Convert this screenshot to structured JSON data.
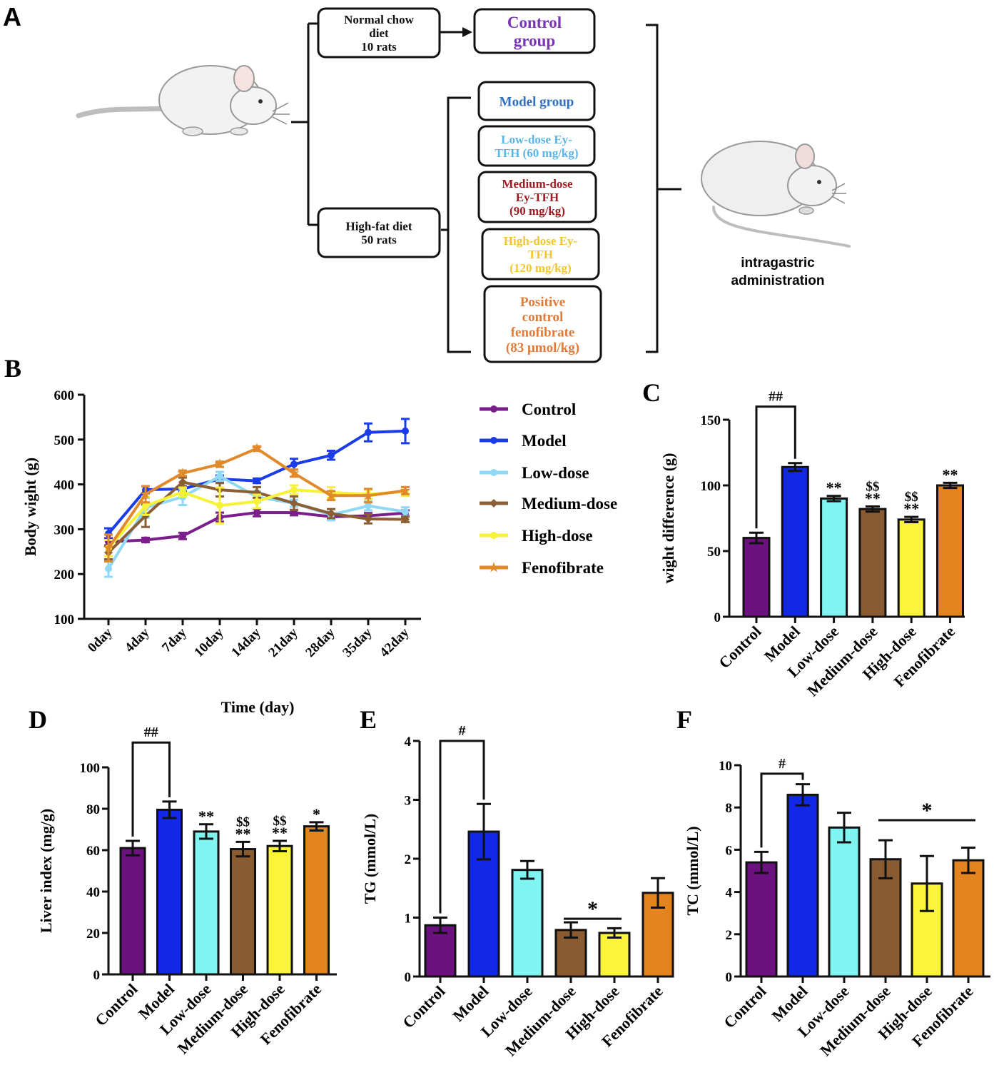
{
  "panel_labels": {
    "a": "A",
    "b": "B",
    "c": "C",
    "d": "D",
    "e": "E",
    "f": "F"
  },
  "flow": {
    "normal_chow": [
      "Normal chow",
      "diet",
      "10 rats"
    ],
    "control_group": [
      "Control",
      "group"
    ],
    "high_fat": [
      "High-fat diet",
      "50 rats"
    ],
    "groups": [
      {
        "lines": [
          "Model group"
        ],
        "color": "#2f6fc2"
      },
      {
        "lines": [
          "Low-dose Ey-",
          "TFH (60 mg/kg)"
        ],
        "color": "#5bb4e8"
      },
      {
        "lines": [
          "Medium-dose",
          "Ey-TFH",
          "(90 mg/kg)"
        ],
        "color": "#a01c22"
      },
      {
        "lines": [
          "High-dose Ey-",
          "TFH",
          "(120 mg/kg)"
        ],
        "color": "#f2c62c"
      },
      {
        "lines": [
          "Positive",
          "control",
          "fenofibrate",
          "(83 μmol/kg)"
        ],
        "color": "#e07b39"
      }
    ],
    "admin": [
      "intragastric",
      "administration"
    ],
    "control_color": "#7a35b5"
  },
  "colors": {
    "Control": "#6b1280",
    "Model": "#1228e8",
    "Low-dose": "#7ff4f0",
    "Medium-dose": "#8a5a30",
    "High-dose": "#fbf43a",
    "Fenofibrate": "#e4841e"
  },
  "chart_data": [
    {
      "id": "B",
      "type": "line",
      "ylabel": "Body wight (g)",
      "xlabel": "Time (day)",
      "categories": [
        "0day",
        "4day",
        "7day",
        "10day",
        "14day",
        "21day",
        "28day",
        "35day",
        "42day"
      ],
      "ylim": [
        100,
        600
      ],
      "yticks": [
        100,
        200,
        300,
        400,
        500,
        600
      ],
      "legend_position": "right",
      "series": [
        {
          "name": "Control",
          "values": [
            272,
            276,
            285,
            327,
            337,
            337,
            328,
            330,
            336
          ],
          "err": [
            8,
            5,
            7,
            10,
            8,
            6,
            5,
            6,
            6
          ],
          "marker": "dot",
          "color": "#6b1280",
          "line": "#7a1e8c"
        },
        {
          "name": "Model",
          "values": [
            290,
            388,
            390,
            412,
            408,
            445,
            465,
            516,
            519
          ],
          "err": [
            12,
            8,
            6,
            8,
            5,
            12,
            10,
            20,
            27
          ],
          "marker": "dot",
          "color": "#1228e8",
          "line": "#1a3be8"
        },
        {
          "name": "Low-dose",
          "values": [
            212,
            348,
            372,
            418,
            372,
            358,
            332,
            352,
            339
          ],
          "err": [
            18,
            22,
            18,
            10,
            12,
            8,
            12,
            10,
            10
          ],
          "marker": "dot",
          "color": "#7fd8f0",
          "line": "#8fd9f6"
        },
        {
          "name": "Medium-dose",
          "values": [
            248,
            330,
            405,
            388,
            382,
            358,
            335,
            323,
            322
          ],
          "err": [
            15,
            25,
            10,
            15,
            12,
            15,
            10,
            10,
            6
          ],
          "marker": "diamond",
          "color": "#8a5a30",
          "line": "#8b5e34"
        },
        {
          "name": "High-dose",
          "values": [
            258,
            352,
            383,
            353,
            362,
            388,
            382,
            378,
            384
          ],
          "err": [
            18,
            20,
            10,
            40,
            15,
            10,
            12,
            10,
            10
          ],
          "marker": "dot",
          "color": "#fbf43a",
          "line": "#f7f237"
        },
        {
          "name": "Fenofibrate",
          "values": [
            258,
            378,
            425,
            445,
            480,
            425,
            375,
            375,
            386
          ],
          "err": [
            30,
            18,
            6,
            6,
            5,
            8,
            10,
            15,
            8
          ],
          "marker": "star",
          "color": "#e4841e",
          "line": "#e08a2c"
        }
      ]
    },
    {
      "id": "C",
      "type": "bar",
      "ylabel": "wight difference (g)",
      "categories": [
        "Control",
        "Model",
        "Low-dose",
        "Medium-dose",
        "High-dose",
        "Fenofibrate"
      ],
      "values": [
        60,
        114,
        90,
        82,
        74,
        100
      ],
      "errors": [
        4,
        3,
        2,
        2,
        2,
        2
      ],
      "ylim": [
        0,
        150
      ],
      "yticks": [
        0,
        50,
        100,
        150
      ],
      "annotations": [
        "",
        "",
        "**",
        "**",
        "**",
        "**"
      ],
      "annotations2": [
        "",
        "",
        "",
        "$$",
        "$$",
        ""
      ],
      "bracket": {
        "from": 0,
        "to": 1,
        "label": "##",
        "level": 160
      }
    },
    {
      "id": "D",
      "type": "bar",
      "ylabel": "Liver index (mg/g)",
      "categories": [
        "Control",
        "Model",
        "Low-dose",
        "Medium-dose",
        "High-dose",
        "Fenofibrate"
      ],
      "values": [
        61,
        79.5,
        69,
        60.5,
        62,
        71.5
      ],
      "errors": [
        3.5,
        4,
        3.5,
        3.5,
        2.5,
        2
      ],
      "ylim": [
        0,
        100
      ],
      "yticks": [
        0,
        20,
        40,
        60,
        80,
        100
      ],
      "annotations": [
        "",
        "",
        "**",
        "**",
        "**",
        "*"
      ],
      "annotations2": [
        "",
        "",
        "",
        "$$",
        "$$",
        ""
      ],
      "bracket": {
        "from": 0,
        "to": 1,
        "label": "##",
        "level": 112
      }
    },
    {
      "id": "E",
      "type": "bar",
      "ylabel": "TG (mmol/L)",
      "categories": [
        "Control",
        "Model",
        "Low-dose",
        "Medium-dose",
        "High-dose",
        "Fenofibrate"
      ],
      "values": [
        0.87,
        2.46,
        1.81,
        0.79,
        0.74,
        1.42
      ],
      "errors": [
        0.13,
        0.47,
        0.15,
        0.13,
        0.08,
        0.25
      ],
      "ylim": [
        0,
        4
      ],
      "yticks": [
        0,
        1,
        2,
        3,
        4
      ],
      "annotations": [
        "",
        "",
        "",
        "",
        "",
        ""
      ],
      "annotations2": [
        "",
        "",
        "",
        "",
        "",
        ""
      ],
      "bracket": {
        "from": 0,
        "to": 1,
        "label": "#",
        "level": 4.0
      },
      "line": {
        "from": 3,
        "to": 4,
        "label": "*",
        "level": 0.98
      }
    },
    {
      "id": "F",
      "type": "bar",
      "ylabel": "TC (mmol/L)",
      "categories": [
        "Control",
        "Model",
        "Low-dose",
        "Medium-dose",
        "High-dose",
        "Fenofibrate"
      ],
      "values": [
        5.4,
        8.6,
        7.05,
        5.55,
        4.4,
        5.5
      ],
      "errors": [
        0.5,
        0.5,
        0.7,
        0.9,
        1.3,
        0.6
      ],
      "ylim": [
        0,
        10
      ],
      "yticks": [
        0,
        2,
        4,
        6,
        8,
        10
      ],
      "annotations": [
        "",
        "",
        "",
        "",
        "",
        ""
      ],
      "annotations2": [
        "",
        "",
        "",
        "",
        "",
        ""
      ],
      "bracket": {
        "from": 0,
        "to": 1,
        "label": "#",
        "level": 9.6
      },
      "line": {
        "from": 3,
        "to": 5,
        "label": "*",
        "level": 7.4
      }
    }
  ]
}
